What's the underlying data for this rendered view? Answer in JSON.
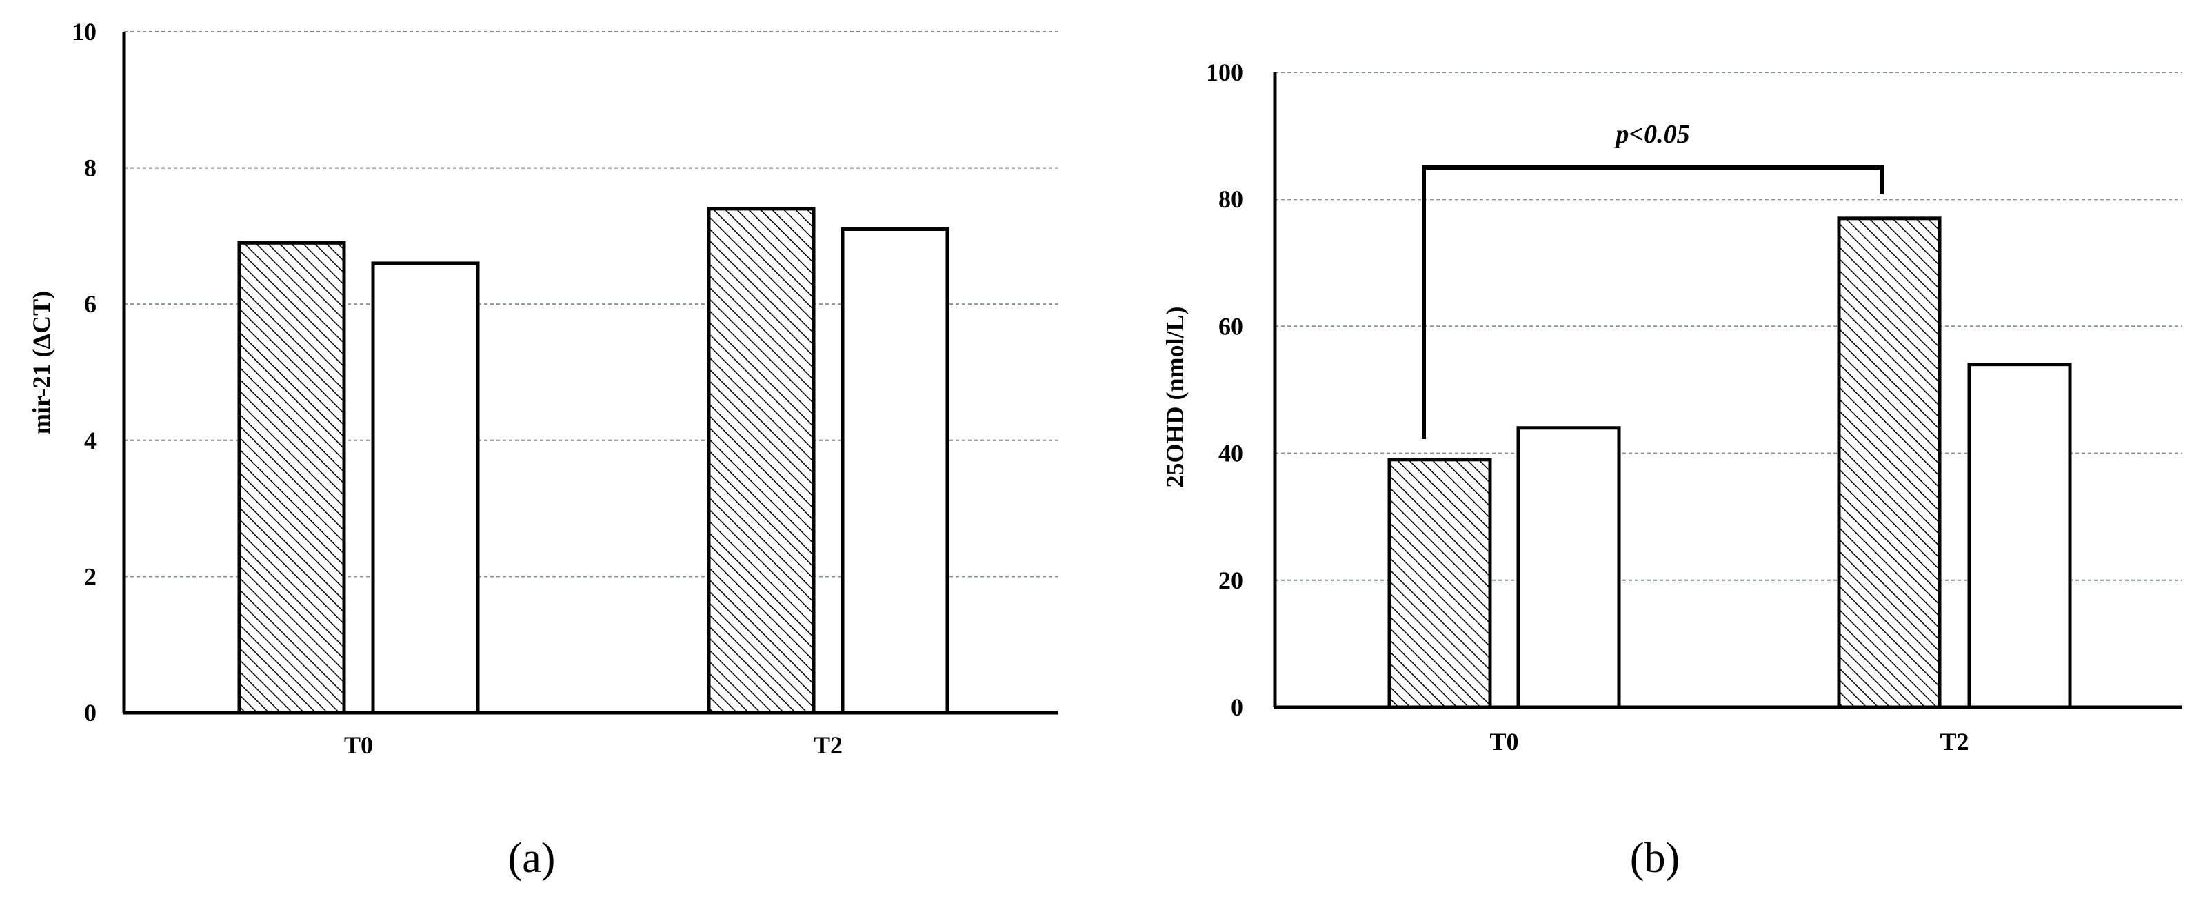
{
  "chart_data": [
    {
      "type": "bar",
      "panel_label": "(a)",
      "title": "",
      "xlabel": "",
      "ylabel": "mir-21 (ΔCT)",
      "ylim": [
        0,
        10
      ],
      "yticks": [
        0,
        2,
        4,
        6,
        8,
        10
      ],
      "grid": true,
      "categories": [
        "T0",
        "T2"
      ],
      "series": [
        {
          "values": [
            6.9,
            7.4
          ],
          "fill": "hatched"
        },
        {
          "values": [
            6.6,
            7.1
          ],
          "fill": "white"
        }
      ]
    },
    {
      "type": "bar",
      "panel_label": "(b)",
      "title": "",
      "xlabel": "",
      "ylabel": "25OHD (nmol/L)",
      "ylim": [
        0,
        100
      ],
      "yticks": [
        0,
        20,
        40,
        60,
        80,
        100
      ],
      "grid": true,
      "categories": [
        "T0",
        "T2"
      ],
      "series": [
        {
          "values": [
            39,
            77
          ],
          "fill": "hatched"
        },
        {
          "values": [
            44,
            54
          ],
          "fill": "white"
        }
      ],
      "annotation": {
        "text": "p<0.05"
      }
    }
  ],
  "colors": {
    "bar_edge": "#000000",
    "hatch": "#000000",
    "grid": "#7f8f85",
    "open_fill": "#ffffff"
  }
}
